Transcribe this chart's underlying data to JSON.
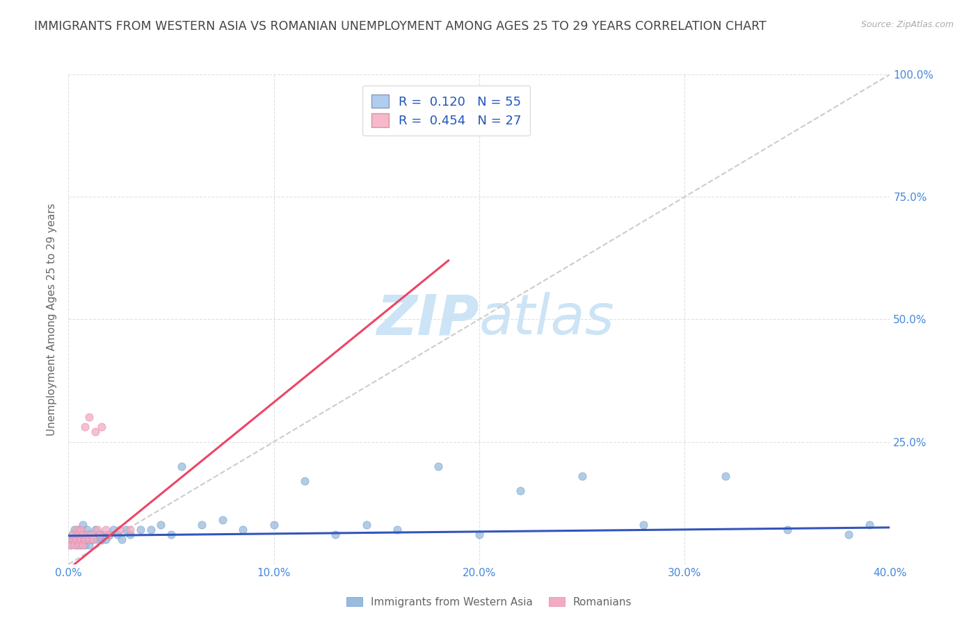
{
  "title": "IMMIGRANTS FROM WESTERN ASIA VS ROMANIAN UNEMPLOYMENT AMONG AGES 25 TO 29 YEARS CORRELATION CHART",
  "source": "Source: ZipAtlas.com",
  "ylabel": "Unemployment Among Ages 25 to 29 years",
  "xlim": [
    0.0,
    0.4
  ],
  "ylim": [
    0.0,
    1.0
  ],
  "xtick_values": [
    0.0,
    0.1,
    0.2,
    0.3,
    0.4
  ],
  "ytick_values": [
    0.0,
    0.25,
    0.5,
    0.75,
    1.0
  ],
  "r_blue": 0.12,
  "n_blue": 55,
  "r_pink": 0.454,
  "n_pink": 27,
  "background_color": "#ffffff",
  "title_color": "#444444",
  "title_fontsize": 12.5,
  "axis_label_color": "#666666",
  "tick_label_color": "#4488dd",
  "grid_color": "#dddddd",
  "watermark_color": "#cce4f5",
  "legend_box_blue": "#b0ccee",
  "legend_box_pink": "#f8b8cc",
  "series_blue_color": "#99bbdd",
  "series_pink_color": "#f4aac4",
  "trendline_blue_color": "#3355bb",
  "trendline_pink_color": "#ee4466",
  "trendline_diagonal_color": "#cccccc",
  "blue_scatter_x": [
    0.001,
    0.002,
    0.002,
    0.003,
    0.003,
    0.004,
    0.004,
    0.005,
    0.005,
    0.006,
    0.006,
    0.007,
    0.007,
    0.008,
    0.008,
    0.009,
    0.009,
    0.01,
    0.01,
    0.011,
    0.012,
    0.013,
    0.014,
    0.015,
    0.016,
    0.017,
    0.018,
    0.02,
    0.022,
    0.024,
    0.026,
    0.028,
    0.03,
    0.035,
    0.04,
    0.045,
    0.05,
    0.055,
    0.065,
    0.075,
    0.085,
    0.1,
    0.115,
    0.13,
    0.145,
    0.16,
    0.18,
    0.2,
    0.22,
    0.25,
    0.28,
    0.32,
    0.35,
    0.38,
    0.39
  ],
  "blue_scatter_y": [
    0.04,
    0.05,
    0.06,
    0.05,
    0.07,
    0.04,
    0.06,
    0.05,
    0.07,
    0.04,
    0.06,
    0.05,
    0.08,
    0.04,
    0.06,
    0.05,
    0.07,
    0.04,
    0.06,
    0.05,
    0.05,
    0.07,
    0.05,
    0.06,
    0.05,
    0.06,
    0.05,
    0.06,
    0.07,
    0.06,
    0.05,
    0.07,
    0.06,
    0.07,
    0.07,
    0.08,
    0.06,
    0.2,
    0.08,
    0.09,
    0.07,
    0.08,
    0.17,
    0.06,
    0.08,
    0.07,
    0.2,
    0.06,
    0.15,
    0.18,
    0.08,
    0.18,
    0.07,
    0.06,
    0.08
  ],
  "pink_scatter_x": [
    0.001,
    0.002,
    0.002,
    0.003,
    0.004,
    0.004,
    0.005,
    0.005,
    0.006,
    0.006,
    0.007,
    0.007,
    0.008,
    0.008,
    0.009,
    0.01,
    0.01,
    0.011,
    0.012,
    0.013,
    0.014,
    0.015,
    0.016,
    0.018,
    0.02,
    0.025,
    0.03
  ],
  "pink_scatter_y": [
    0.04,
    0.05,
    0.06,
    0.04,
    0.05,
    0.07,
    0.04,
    0.06,
    0.05,
    0.07,
    0.04,
    0.06,
    0.05,
    0.28,
    0.06,
    0.05,
    0.3,
    0.06,
    0.05,
    0.27,
    0.07,
    0.06,
    0.28,
    0.07,
    0.06,
    0.07,
    0.07
  ],
  "pink_trendline_x0": 0.0,
  "pink_trendline_y0": -0.01,
  "pink_trendline_x1": 0.185,
  "pink_trendline_y1": 0.62,
  "blue_trendline_x0": 0.0,
  "blue_trendline_y0": 0.058,
  "blue_trendline_x1": 0.4,
  "blue_trendline_y1": 0.075
}
